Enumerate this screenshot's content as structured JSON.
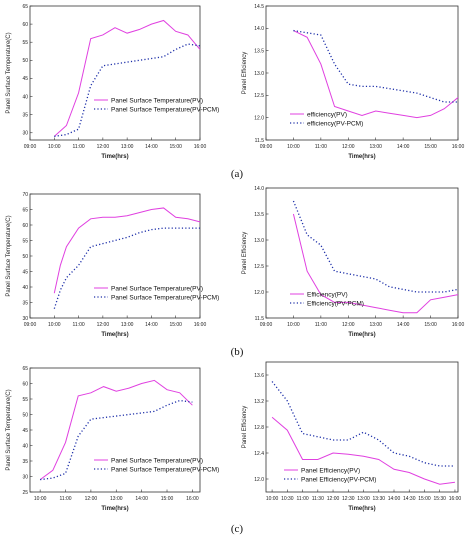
{
  "colors": {
    "pv": "#e040e0",
    "pvpcm": "#1c2ea8",
    "axis": "#333333"
  },
  "captions": [
    "(a)",
    "(b)",
    "(c)"
  ],
  "chart_data": [
    {
      "id": "a-left",
      "type": "line",
      "caption": "(a)",
      "xlabel": "Time(hrs)",
      "ylabel": "Panel Surface Temperature(C)",
      "xticks": [
        "09:00",
        "10:00",
        "11:00",
        "12:00",
        "13:00",
        "14:00",
        "15:00",
        "16:00"
      ],
      "xlim": [
        9,
        16
      ],
      "ylim": [
        28,
        65
      ],
      "yticks": [
        30,
        35,
        40,
        45,
        50,
        55,
        60,
        65
      ],
      "legend": "right-middle",
      "series": [
        {
          "name": "Panel Surface Temperature(PV)",
          "style": "solid",
          "color": "pv",
          "x": [
            10,
            10.5,
            11,
            11.5,
            12,
            12.5,
            13,
            13.5,
            14,
            14.5,
            15,
            15.5,
            16
          ],
          "y": [
            29,
            32,
            41,
            56,
            57,
            59,
            57.5,
            58.5,
            60,
            61,
            58,
            57,
            53
          ]
        },
        {
          "name": "Panel Surface Temperature(PV-PCM)",
          "style": "dotted",
          "color": "pvpcm",
          "x": [
            10,
            10.5,
            11,
            11.5,
            12,
            12.5,
            13,
            13.5,
            14,
            14.5,
            15,
            15.5,
            16
          ],
          "y": [
            29,
            29.5,
            31,
            43,
            48.5,
            49,
            49.5,
            50,
            50.5,
            51,
            53,
            54.5,
            54
          ]
        }
      ]
    },
    {
      "id": "a-right",
      "type": "line",
      "caption": "(a)",
      "xlabel": "Time(hrs)",
      "ylabel": "Panel Efficiency",
      "xticks": [
        "09:00",
        "10:00",
        "11:00",
        "12:00",
        "13:00",
        "14:00",
        "15:00",
        "16:00"
      ],
      "xlim": [
        9,
        16
      ],
      "ylim": [
        11.5,
        14.5
      ],
      "yticks": [
        11.5,
        12.0,
        12.5,
        13.0,
        13.5,
        14.0,
        14.5
      ],
      "ytick_labels": [
        "11.5",
        "12.0",
        "12.5",
        "13.0",
        "13.5",
        "14.0",
        "14.5"
      ],
      "legend": "bottom-middle",
      "series": [
        {
          "name": "efficiency(PV)",
          "style": "solid",
          "color": "pv",
          "x": [
            10,
            10.5,
            11,
            11.5,
            12,
            12.5,
            13,
            13.5,
            14,
            14.5,
            15,
            15.5,
            16
          ],
          "y": [
            13.95,
            13.8,
            13.2,
            12.25,
            12.15,
            12.05,
            12.15,
            12.1,
            12.05,
            12.0,
            12.05,
            12.2,
            12.45
          ]
        },
        {
          "name": "efficiency(PV-PCM)",
          "style": "dotted",
          "color": "pvpcm",
          "x": [
            10,
            10.5,
            11,
            11.5,
            12,
            12.5,
            13,
            13.5,
            14,
            14.5,
            15,
            15.5,
            16
          ],
          "y": [
            13.95,
            13.9,
            13.85,
            13.2,
            12.75,
            12.7,
            12.7,
            12.65,
            12.6,
            12.55,
            12.45,
            12.35,
            12.35
          ]
        }
      ]
    },
    {
      "id": "b-left",
      "type": "line",
      "caption": "(b)",
      "xlabel": "Time(hrs)",
      "ylabel": "Panel Surface Temperature(C)",
      "xticks": [
        "09:00",
        "10:00",
        "11:00",
        "12:00",
        "13:00",
        "14:00",
        "15:00",
        "16:00"
      ],
      "xlim": [
        9,
        16
      ],
      "ylim": [
        30,
        70
      ],
      "yticks": [
        30,
        35,
        40,
        45,
        50,
        55,
        60,
        65,
        70
      ],
      "legend": "bottom-right",
      "series": [
        {
          "name": "Panel Surface Temperature(PV)",
          "style": "solid",
          "color": "pv",
          "x": [
            10,
            10.25,
            10.5,
            11,
            11.5,
            12,
            12.5,
            13,
            13.5,
            14,
            14.5,
            15,
            15.5,
            16
          ],
          "y": [
            38,
            47,
            53,
            59,
            62,
            62.5,
            62.5,
            63,
            64,
            65,
            65.5,
            62.5,
            62,
            61
          ]
        },
        {
          "name": "Panel Surface Temperature(PV-PCM)",
          "style": "dotted",
          "color": "pvpcm",
          "x": [
            10,
            10.25,
            10.5,
            11,
            11.5,
            12,
            12.5,
            13,
            13.5,
            14,
            14.5,
            15,
            15.5,
            16
          ],
          "y": [
            33,
            39,
            43,
            47,
            53,
            54,
            55,
            56,
            57.5,
            58.5,
            59,
            59,
            59,
            59
          ]
        }
      ]
    },
    {
      "id": "b-right",
      "type": "line",
      "caption": "(b)",
      "xlabel": "Time(hrs)",
      "ylabel": "Panel Efficiency",
      "xticks": [
        "09:00",
        "10:00",
        "11:00",
        "12:00",
        "13:00",
        "14:00",
        "15:00",
        "16:00"
      ],
      "xlim": [
        9,
        16
      ],
      "ylim": [
        11.5,
        14.0
      ],
      "yticks": [
        11.5,
        12.0,
        12.5,
        13.0,
        13.5,
        14.0
      ],
      "ytick_labels": [
        "11.5",
        "12.0",
        "12.5",
        "13.0",
        "13.5",
        "14.0"
      ],
      "legend": "bottom-middle",
      "series": [
        {
          "name": "Efficiency(PV)",
          "style": "solid",
          "color": "pv",
          "x": [
            10,
            10.5,
            11,
            11.5,
            12,
            12.5,
            13,
            13.5,
            14,
            14.5,
            15,
            15.5,
            16
          ],
          "y": [
            13.5,
            12.4,
            11.95,
            11.8,
            11.8,
            11.75,
            11.7,
            11.65,
            11.6,
            11.6,
            11.85,
            11.9,
            11.95
          ]
        },
        {
          "name": "Efficiency(PV-PCM)",
          "style": "dotted",
          "color": "pvpcm",
          "x": [
            10,
            10.5,
            11,
            11.5,
            12,
            12.5,
            13,
            13.5,
            14,
            14.5,
            15,
            15.5,
            16
          ],
          "y": [
            13.75,
            13.1,
            12.9,
            12.4,
            12.35,
            12.3,
            12.25,
            12.1,
            12.05,
            12.0,
            12.0,
            12.0,
            12.05
          ]
        }
      ]
    },
    {
      "id": "c-left",
      "type": "line",
      "caption": "(c)",
      "xlabel": "Time(hrs)",
      "ylabel": "Panel Surface Temperature(C)",
      "xticks": [
        "10:00",
        "11:00",
        "12:00",
        "13:00",
        "14:00",
        "15:00",
        "16:00"
      ],
      "xlim": [
        9.6,
        16.3
      ],
      "ylim": [
        25,
        65
      ],
      "yticks": [
        25,
        30,
        35,
        40,
        45,
        50,
        55,
        60,
        65
      ],
      "legend": "bottom-right",
      "series": [
        {
          "name": "Panel Surface Temperature(PV)",
          "style": "solid",
          "color": "pv",
          "x": [
            10,
            10.5,
            11,
            11.5,
            12,
            12.5,
            13,
            13.5,
            14,
            14.5,
            15,
            15.5,
            16
          ],
          "y": [
            29,
            32,
            41,
            56,
            57,
            59,
            57.5,
            58.5,
            60,
            61,
            58,
            57,
            53
          ]
        },
        {
          "name": "Panel Surface Temperature(PV-PCM)",
          "style": "dotted",
          "color": "pvpcm",
          "x": [
            10,
            10.5,
            11,
            11.5,
            12,
            12.5,
            13,
            13.5,
            14,
            14.5,
            15,
            15.5,
            16
          ],
          "y": [
            29,
            29.5,
            31,
            43,
            48.5,
            49,
            49.5,
            50,
            50.5,
            51,
            53,
            54.5,
            54
          ]
        }
      ]
    },
    {
      "id": "c-right",
      "type": "line",
      "caption": "(c)",
      "xlabel": "Time(hrs)",
      "ylabel": "Panel Efficiency",
      "xticks": [
        "10:00",
        "10:30",
        "11:00",
        "11:30",
        "12:00",
        "12:30",
        "13:00",
        "13:30",
        "14:00",
        "14:30",
        "15:00",
        "15:30",
        "16:00"
      ],
      "xlim": [
        9.8,
        16.1
      ],
      "ylim": [
        11.8,
        13.8
      ],
      "yticks": [
        12.0,
        12.4,
        12.8,
        13.2,
        13.6
      ],
      "ytick_labels": [
        "12.0",
        "12.4",
        "12.8",
        "13.2",
        "13.6"
      ],
      "legend": "bottom-left",
      "series": [
        {
          "name": "Panel Efficiency(PV)",
          "style": "solid",
          "color": "pv",
          "x": [
            10,
            10.5,
            11,
            11.5,
            12,
            12.5,
            13,
            13.5,
            14,
            14.5,
            15,
            15.5,
            16
          ],
          "y": [
            12.95,
            12.75,
            12.3,
            12.3,
            12.4,
            12.38,
            12.35,
            12.3,
            12.15,
            12.1,
            12.0,
            11.92,
            11.95
          ]
        },
        {
          "name": "Panel Efficiency(PV-PCM)",
          "style": "dotted",
          "color": "pvpcm",
          "x": [
            10,
            10.5,
            11,
            11.5,
            12,
            12.5,
            13,
            13.5,
            14,
            14.5,
            15,
            15.5,
            16
          ],
          "y": [
            13.5,
            13.2,
            12.7,
            12.65,
            12.6,
            12.6,
            12.72,
            12.6,
            12.4,
            12.35,
            12.25,
            12.2,
            12.2
          ]
        }
      ]
    }
  ]
}
